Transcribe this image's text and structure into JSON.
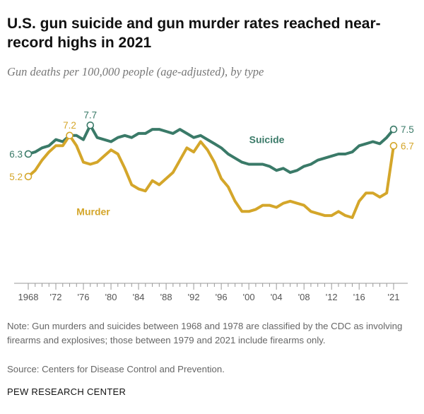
{
  "title": "U.S. gun suicide and gun murder rates reached near-record highs in 2021",
  "subtitle": "Gun deaths per 100,000 people (age-adjusted), by type",
  "note": "Note: Gun murders and suicides between 1968 and 1978 are classified by the CDC as involving firearms and explosives; those between 1979 and 2021 include firearms only.",
  "source": "Source: Centers for Disease Control and Prevention.",
  "brand": "PEW RESEARCH CENTER",
  "colors": {
    "suicide": "#3a7a68",
    "murder": "#d4a62a",
    "axis": "#999999"
  },
  "chart_data": {
    "type": "line",
    "xlabel": "",
    "ylabel": "",
    "xlim": [
      1968,
      2021
    ],
    "ylim": [
      0,
      9.5
    ],
    "grid": false,
    "x": [
      1968,
      1969,
      1970,
      1971,
      1972,
      1973,
      1974,
      1975,
      1976,
      1977,
      1978,
      1979,
      1980,
      1981,
      1982,
      1983,
      1984,
      1985,
      1986,
      1987,
      1988,
      1989,
      1990,
      1991,
      1992,
      1993,
      1994,
      1995,
      1996,
      1997,
      1998,
      1999,
      2000,
      2001,
      2002,
      2003,
      2004,
      2005,
      2006,
      2007,
      2008,
      2009,
      2010,
      2011,
      2012,
      2013,
      2014,
      2015,
      2016,
      2017,
      2018,
      2019,
      2020,
      2021
    ],
    "xtick_values": [
      1968,
      1972,
      1976,
      1980,
      1984,
      1988,
      1992,
      1996,
      2000,
      2004,
      2008,
      2012,
      2016,
      2021
    ],
    "xtick_labels": [
      "1968",
      "'72",
      "'76",
      "'80",
      "'84",
      "'88",
      "'92",
      "'96",
      "'00",
      "'04",
      "'08",
      "'12",
      "'16",
      "'21"
    ],
    "series": [
      {
        "name": "Suicide",
        "color": "#3a7a68",
        "values": [
          6.3,
          6.4,
          6.6,
          6.7,
          7.0,
          6.9,
          7.2,
          7.2,
          7.0,
          7.7,
          7.1,
          7.0,
          6.9,
          7.1,
          7.2,
          7.1,
          7.3,
          7.3,
          7.5,
          7.5,
          7.4,
          7.3,
          7.5,
          7.3,
          7.1,
          7.2,
          7.0,
          6.8,
          6.6,
          6.3,
          6.1,
          5.9,
          5.8,
          5.8,
          5.8,
          5.7,
          5.5,
          5.6,
          5.4,
          5.5,
          5.7,
          5.8,
          6.0,
          6.1,
          6.2,
          6.3,
          6.3,
          6.4,
          6.7,
          6.8,
          6.9,
          6.8,
          7.1,
          7.5
        ],
        "labeled_points": [
          {
            "x": 1968,
            "label": "6.3"
          },
          {
            "x": 1977,
            "label": "7.7"
          },
          {
            "x": 2021,
            "label": "7.5"
          }
        ]
      },
      {
        "name": "Murder",
        "color": "#d4a62a",
        "values": [
          5.2,
          5.5,
          6.0,
          6.4,
          6.7,
          6.7,
          7.2,
          6.7,
          5.9,
          5.8,
          5.9,
          6.2,
          6.5,
          6.3,
          5.6,
          4.8,
          4.6,
          4.5,
          5.0,
          4.8,
          5.1,
          5.4,
          6.0,
          6.6,
          6.4,
          6.9,
          6.5,
          5.9,
          5.1,
          4.7,
          4.0,
          3.5,
          3.5,
          3.6,
          3.8,
          3.8,
          3.7,
          3.9,
          4.0,
          3.9,
          3.8,
          3.5,
          3.4,
          3.3,
          3.3,
          3.5,
          3.3,
          3.2,
          4.0,
          4.4,
          4.4,
          4.2,
          4.4,
          6.7
        ],
        "labeled_points": [
          {
            "x": 1968,
            "label": "5.2"
          },
          {
            "x": 1974,
            "label": "7.2"
          },
          {
            "x": 2021,
            "label": "6.7"
          }
        ]
      }
    ]
  }
}
